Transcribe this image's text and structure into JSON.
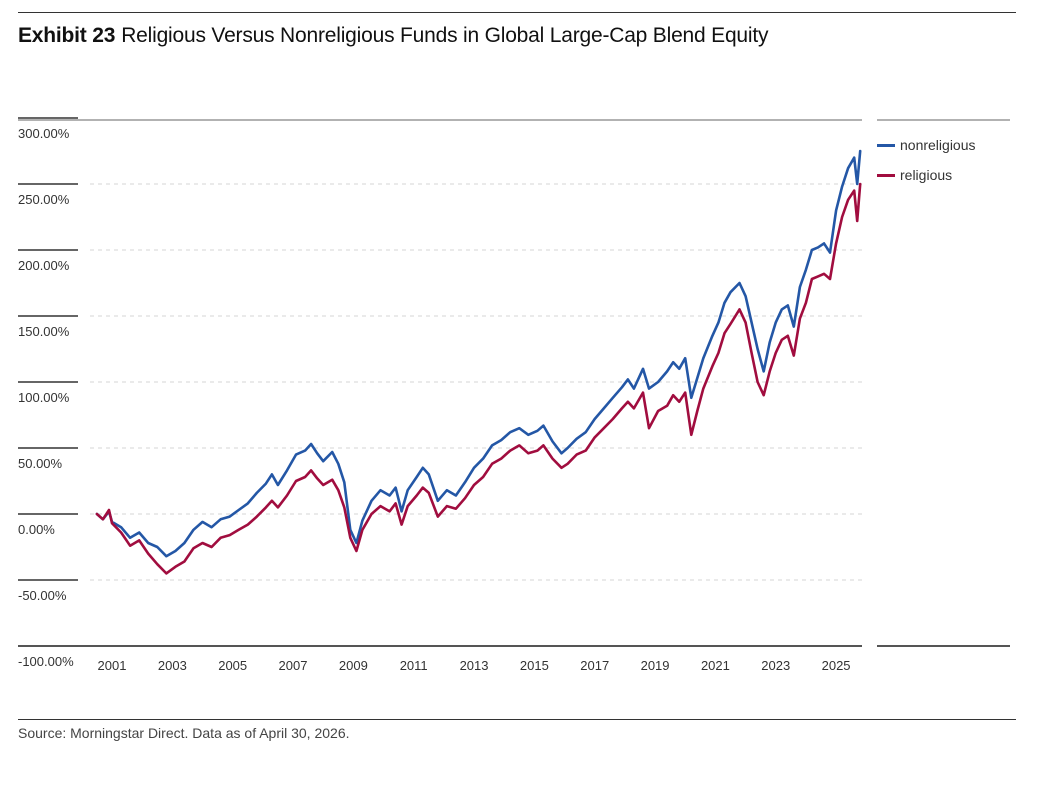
{
  "header": {
    "exhibit": "Exhibit 23",
    "title": "Religious Versus Nonreligious Funds in Global Large-Cap Blend Equity"
  },
  "footer": {
    "source": "Source: Morningstar Direct. Data as of April 30, 2026."
  },
  "chart_data": {
    "type": "line",
    "y_unit": "percent",
    "ylim": [
      -100,
      300
    ],
    "y_ticks": [
      300,
      250,
      200,
      150,
      100,
      50,
      0,
      -50,
      -100
    ],
    "y_tick_labels": [
      "300.00%",
      "250.00%",
      "200.00%",
      "150.00%",
      "100.00%",
      "50.00%",
      "0.00%",
      "-50.00%",
      "-100.00%"
    ],
    "x_ticks": [
      2001,
      2003,
      2005,
      2007,
      2009,
      2011,
      2013,
      2015,
      2017,
      2019,
      2021,
      2023,
      2025
    ],
    "x_tick_labels": [
      "2001",
      "2003",
      "2005",
      "2007",
      "2009",
      "2011",
      "2013",
      "2015",
      "2017",
      "2019",
      "2021",
      "2023",
      "2025"
    ],
    "xlim": [
      2000.4,
      2025.9
    ],
    "grid": "horizontal dashed",
    "legend": "right",
    "colors": {
      "nonreligious": "#2457a6",
      "religious": "#a10d3f"
    },
    "series": [
      {
        "name": "nonreligious",
        "color": "#2457a6",
        "points": [
          [
            2000.5,
            0
          ],
          [
            2000.7,
            -4
          ],
          [
            2000.9,
            2
          ],
          [
            2001.0,
            -6
          ],
          [
            2001.3,
            -10
          ],
          [
            2001.6,
            -18
          ],
          [
            2001.9,
            -14
          ],
          [
            2002.2,
            -22
          ],
          [
            2002.5,
            -25
          ],
          [
            2002.8,
            -32
          ],
          [
            2003.1,
            -28
          ],
          [
            2003.4,
            -22
          ],
          [
            2003.7,
            -12
          ],
          [
            2004.0,
            -6
          ],
          [
            2004.3,
            -10
          ],
          [
            2004.6,
            -4
          ],
          [
            2004.9,
            -2
          ],
          [
            2005.2,
            3
          ],
          [
            2005.5,
            8
          ],
          [
            2005.8,
            16
          ],
          [
            2006.1,
            23
          ],
          [
            2006.3,
            30
          ],
          [
            2006.5,
            22
          ],
          [
            2006.8,
            33
          ],
          [
            2007.1,
            45
          ],
          [
            2007.4,
            48
          ],
          [
            2007.6,
            53
          ],
          [
            2007.8,
            46
          ],
          [
            2008.0,
            40
          ],
          [
            2008.3,
            47
          ],
          [
            2008.5,
            38
          ],
          [
            2008.7,
            24
          ],
          [
            2008.9,
            -12
          ],
          [
            2009.1,
            -22
          ],
          [
            2009.3,
            -5
          ],
          [
            2009.6,
            10
          ],
          [
            2009.9,
            18
          ],
          [
            2010.2,
            14
          ],
          [
            2010.4,
            20
          ],
          [
            2010.6,
            2
          ],
          [
            2010.8,
            18
          ],
          [
            2011.1,
            28
          ],
          [
            2011.3,
            35
          ],
          [
            2011.5,
            30
          ],
          [
            2011.8,
            10
          ],
          [
            2012.1,
            18
          ],
          [
            2012.4,
            14
          ],
          [
            2012.7,
            24
          ],
          [
            2013.0,
            35
          ],
          [
            2013.3,
            42
          ],
          [
            2013.6,
            52
          ],
          [
            2013.9,
            56
          ],
          [
            2014.2,
            62
          ],
          [
            2014.5,
            65
          ],
          [
            2014.8,
            60
          ],
          [
            2015.1,
            63
          ],
          [
            2015.3,
            67
          ],
          [
            2015.6,
            55
          ],
          [
            2015.9,
            46
          ],
          [
            2016.1,
            50
          ],
          [
            2016.4,
            57
          ],
          [
            2016.7,
            62
          ],
          [
            2017.0,
            72
          ],
          [
            2017.3,
            80
          ],
          [
            2017.6,
            88
          ],
          [
            2017.9,
            96
          ],
          [
            2018.1,
            102
          ],
          [
            2018.3,
            95
          ],
          [
            2018.6,
            110
          ],
          [
            2018.8,
            95
          ],
          [
            2019.1,
            100
          ],
          [
            2019.4,
            108
          ],
          [
            2019.6,
            115
          ],
          [
            2019.8,
            110
          ],
          [
            2020.0,
            118
          ],
          [
            2020.2,
            88
          ],
          [
            2020.4,
            103
          ],
          [
            2020.6,
            118
          ],
          [
            2020.9,
            135
          ],
          [
            2021.1,
            145
          ],
          [
            2021.3,
            160
          ],
          [
            2021.5,
            168
          ],
          [
            2021.8,
            175
          ],
          [
            2022.0,
            165
          ],
          [
            2022.2,
            145
          ],
          [
            2022.4,
            125
          ],
          [
            2022.6,
            108
          ],
          [
            2022.8,
            130
          ],
          [
            2023.0,
            145
          ],
          [
            2023.2,
            155
          ],
          [
            2023.4,
            158
          ],
          [
            2023.6,
            142
          ],
          [
            2023.8,
            172
          ],
          [
            2024.0,
            185
          ],
          [
            2024.2,
            200
          ],
          [
            2024.4,
            202
          ],
          [
            2024.6,
            205
          ],
          [
            2024.8,
            198
          ],
          [
            2025.0,
            230
          ],
          [
            2025.2,
            248
          ],
          [
            2025.4,
            262
          ],
          [
            2025.6,
            270
          ],
          [
            2025.7,
            250
          ],
          [
            2025.8,
            275
          ]
        ]
      },
      {
        "name": "religious",
        "color": "#a10d3f",
        "points": [
          [
            2000.5,
            0
          ],
          [
            2000.7,
            -4
          ],
          [
            2000.9,
            3
          ],
          [
            2001.0,
            -7
          ],
          [
            2001.3,
            -14
          ],
          [
            2001.6,
            -24
          ],
          [
            2001.9,
            -20
          ],
          [
            2002.2,
            -30
          ],
          [
            2002.5,
            -38
          ],
          [
            2002.8,
            -45
          ],
          [
            2003.1,
            -40
          ],
          [
            2003.4,
            -36
          ],
          [
            2003.7,
            -26
          ],
          [
            2004.0,
            -22
          ],
          [
            2004.3,
            -25
          ],
          [
            2004.6,
            -18
          ],
          [
            2004.9,
            -16
          ],
          [
            2005.2,
            -12
          ],
          [
            2005.5,
            -8
          ],
          [
            2005.8,
            -2
          ],
          [
            2006.1,
            5
          ],
          [
            2006.3,
            10
          ],
          [
            2006.5,
            5
          ],
          [
            2006.8,
            14
          ],
          [
            2007.1,
            25
          ],
          [
            2007.4,
            28
          ],
          [
            2007.6,
            33
          ],
          [
            2007.8,
            27
          ],
          [
            2008.0,
            22
          ],
          [
            2008.3,
            26
          ],
          [
            2008.5,
            18
          ],
          [
            2008.7,
            5
          ],
          [
            2008.9,
            -18
          ],
          [
            2009.1,
            -28
          ],
          [
            2009.3,
            -12
          ],
          [
            2009.6,
            0
          ],
          [
            2009.9,
            6
          ],
          [
            2010.2,
            2
          ],
          [
            2010.4,
            8
          ],
          [
            2010.6,
            -8
          ],
          [
            2010.8,
            6
          ],
          [
            2011.1,
            14
          ],
          [
            2011.3,
            20
          ],
          [
            2011.5,
            16
          ],
          [
            2011.8,
            -2
          ],
          [
            2012.1,
            6
          ],
          [
            2012.4,
            4
          ],
          [
            2012.7,
            12
          ],
          [
            2013.0,
            22
          ],
          [
            2013.3,
            28
          ],
          [
            2013.6,
            38
          ],
          [
            2013.9,
            42
          ],
          [
            2014.2,
            48
          ],
          [
            2014.5,
            52
          ],
          [
            2014.8,
            46
          ],
          [
            2015.1,
            48
          ],
          [
            2015.3,
            52
          ],
          [
            2015.6,
            42
          ],
          [
            2015.9,
            35
          ],
          [
            2016.1,
            38
          ],
          [
            2016.4,
            45
          ],
          [
            2016.7,
            48
          ],
          [
            2017.0,
            58
          ],
          [
            2017.3,
            65
          ],
          [
            2017.6,
            72
          ],
          [
            2017.9,
            80
          ],
          [
            2018.1,
            85
          ],
          [
            2018.3,
            80
          ],
          [
            2018.6,
            92
          ],
          [
            2018.8,
            65
          ],
          [
            2019.1,
            78
          ],
          [
            2019.4,
            82
          ],
          [
            2019.6,
            90
          ],
          [
            2019.8,
            85
          ],
          [
            2020.0,
            92
          ],
          [
            2020.2,
            60
          ],
          [
            2020.4,
            78
          ],
          [
            2020.6,
            95
          ],
          [
            2020.9,
            112
          ],
          [
            2021.1,
            122
          ],
          [
            2021.3,
            137
          ],
          [
            2021.5,
            144
          ],
          [
            2021.8,
            155
          ],
          [
            2022.0,
            145
          ],
          [
            2022.2,
            122
          ],
          [
            2022.4,
            100
          ],
          [
            2022.6,
            90
          ],
          [
            2022.8,
            108
          ],
          [
            2023.0,
            122
          ],
          [
            2023.2,
            132
          ],
          [
            2023.4,
            135
          ],
          [
            2023.6,
            120
          ],
          [
            2023.8,
            148
          ],
          [
            2024.0,
            160
          ],
          [
            2024.2,
            178
          ],
          [
            2024.4,
            180
          ],
          [
            2024.6,
            182
          ],
          [
            2024.8,
            178
          ],
          [
            2025.0,
            205
          ],
          [
            2025.2,
            225
          ],
          [
            2025.4,
            238
          ],
          [
            2025.6,
            245
          ],
          [
            2025.7,
            222
          ],
          [
            2025.8,
            250
          ]
        ]
      }
    ]
  }
}
